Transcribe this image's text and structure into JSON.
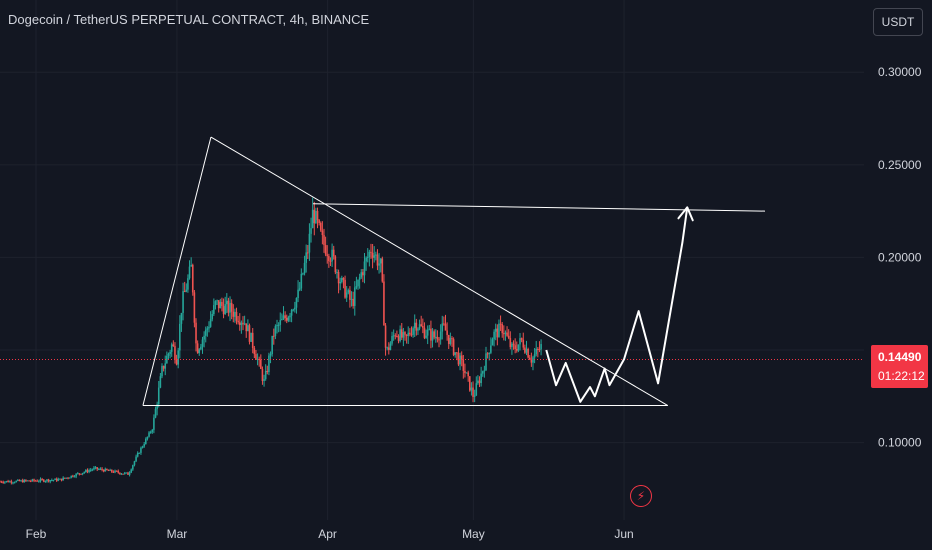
{
  "header": {
    "title": "Dogecoin / TetherUS PERPETUAL CONTRACT, 4h, BINANCE",
    "currency": "USDT"
  },
  "price_badge": {
    "price": "0.14490",
    "countdown": "01:22:12"
  },
  "icons": {
    "alert": "lightning-icon"
  },
  "colors": {
    "background": "#131722",
    "up": "#26a69a",
    "down": "#ef5350",
    "drawing": "#ffffff",
    "price_line": "#f23645",
    "grid": "#1e222d"
  },
  "chart_data": {
    "type": "candlestick",
    "x_ticks": [
      "Feb",
      "Mar",
      "Apr",
      "May",
      "Jun"
    ],
    "y_ticks": [
      "0.10000",
      "0.15000",
      "0.20000",
      "0.25000",
      "0.30000"
    ],
    "ylim": [
      0.042,
      0.339
    ],
    "current_price": 0.1449,
    "trendlines": [
      {
        "name": "triangle-rise",
        "points": [
          [
            "2024-02-23",
            0.12
          ],
          [
            "2024-03-08",
            0.265
          ]
        ]
      },
      {
        "name": "triangle-descending-top",
        "points": [
          [
            "2024-03-08",
            0.265
          ],
          [
            "2024-06-10",
            0.12
          ]
        ]
      },
      {
        "name": "triangle-base",
        "points": [
          [
            "2024-02-23",
            0.12
          ],
          [
            "2024-06-10",
            0.12
          ]
        ]
      },
      {
        "name": "upper-resistance",
        "points": [
          [
            "2024-03-29",
            0.229
          ],
          [
            "2024-06-30",
            0.225
          ]
        ]
      }
    ],
    "projection_path": [
      [
        "2024-05-16",
        0.15
      ],
      [
        "2024-05-18",
        0.131
      ],
      [
        "2024-05-20",
        0.143
      ],
      [
        "2024-05-23",
        0.122
      ],
      [
        "2024-05-25",
        0.13
      ],
      [
        "2024-05-26",
        0.125
      ],
      [
        "2024-05-28",
        0.14
      ],
      [
        "2024-05-29",
        0.131
      ],
      [
        "2024-06-01",
        0.145
      ],
      [
        "2024-06-04",
        0.171
      ],
      [
        "2024-06-08",
        0.132
      ],
      [
        "2024-06-13",
        0.208
      ],
      [
        "2024-06-14",
        0.227
      ]
    ],
    "price_path": [
      [
        "2024-01-27",
        0.079
      ],
      [
        "2024-02-06",
        0.08
      ],
      [
        "2024-02-13",
        0.086
      ],
      [
        "2024-02-20",
        0.083
      ],
      [
        "2024-02-22",
        0.094
      ],
      [
        "2024-02-25",
        0.108
      ],
      [
        "2024-02-27",
        0.14
      ],
      [
        "2024-02-29",
        0.153
      ],
      [
        "2024-03-01",
        0.145
      ],
      [
        "2024-03-02",
        0.175
      ],
      [
        "2024-03-04",
        0.195
      ],
      [
        "2024-03-05",
        0.15
      ],
      [
        "2024-03-07",
        0.16
      ],
      [
        "2024-03-09",
        0.175
      ],
      [
        "2024-03-12",
        0.172
      ],
      [
        "2024-03-15",
        0.165
      ],
      [
        "2024-03-17",
        0.15
      ],
      [
        "2024-03-19",
        0.132
      ],
      [
        "2024-03-21",
        0.16
      ],
      [
        "2024-03-24",
        0.17
      ],
      [
        "2024-03-26",
        0.18
      ],
      [
        "2024-03-28",
        0.205
      ],
      [
        "2024-03-29",
        0.225
      ],
      [
        "2024-03-31",
        0.208
      ],
      [
        "2024-04-02",
        0.2
      ],
      [
        "2024-04-04",
        0.185
      ],
      [
        "2024-04-06",
        0.175
      ],
      [
        "2024-04-08",
        0.192
      ],
      [
        "2024-04-10",
        0.205
      ],
      [
        "2024-04-12",
        0.195
      ],
      [
        "2024-04-13",
        0.148
      ],
      [
        "2024-04-15",
        0.16
      ],
      [
        "2024-04-17",
        0.155
      ],
      [
        "2024-04-19",
        0.165
      ],
      [
        "2024-04-21",
        0.16
      ],
      [
        "2024-04-23",
        0.157
      ],
      [
        "2024-04-25",
        0.162
      ],
      [
        "2024-04-27",
        0.15
      ],
      [
        "2024-04-29",
        0.14
      ],
      [
        "2024-05-01",
        0.125
      ],
      [
        "2024-05-03",
        0.14
      ],
      [
        "2024-05-05",
        0.158
      ],
      [
        "2024-05-07",
        0.162
      ],
      [
        "2024-05-09",
        0.15
      ],
      [
        "2024-05-11",
        0.155
      ],
      [
        "2024-05-13",
        0.145
      ],
      [
        "2024-05-15",
        0.152
      ]
    ]
  }
}
